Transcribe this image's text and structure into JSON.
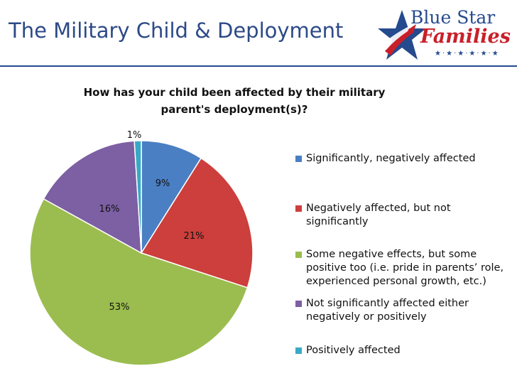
{
  "header": {
    "title": "The Military Child & Deployment"
  },
  "logo": {
    "line1": "Blue Star",
    "line2": "Families",
    "stars": "★·★·★·★·★·★",
    "colors": {
      "blue": "#254a8e",
      "red": "#c8202a"
    }
  },
  "chart_data": {
    "type": "pie",
    "title": "How has your child been affected by their military parent's deployment(s)?",
    "categories": [
      "Significantly, negatively affected",
      "Negatively affected, but not significantly",
      "Some negative effects, but some positive too (i.e. pride in parents’ role, experienced personal growth, etc.)",
      "Not significantly affected either negatively or positively",
      "Positively affected"
    ],
    "values": [
      9,
      21,
      53,
      16,
      1
    ],
    "data_labels": [
      "9%",
      "21%",
      "53%",
      "16%",
      "1%"
    ],
    "colors": [
      "#4a7fc4",
      "#cc3f3c",
      "#9bbd4f",
      "#7d5fa3",
      "#38a9c6"
    ],
    "legend_position": "right"
  }
}
